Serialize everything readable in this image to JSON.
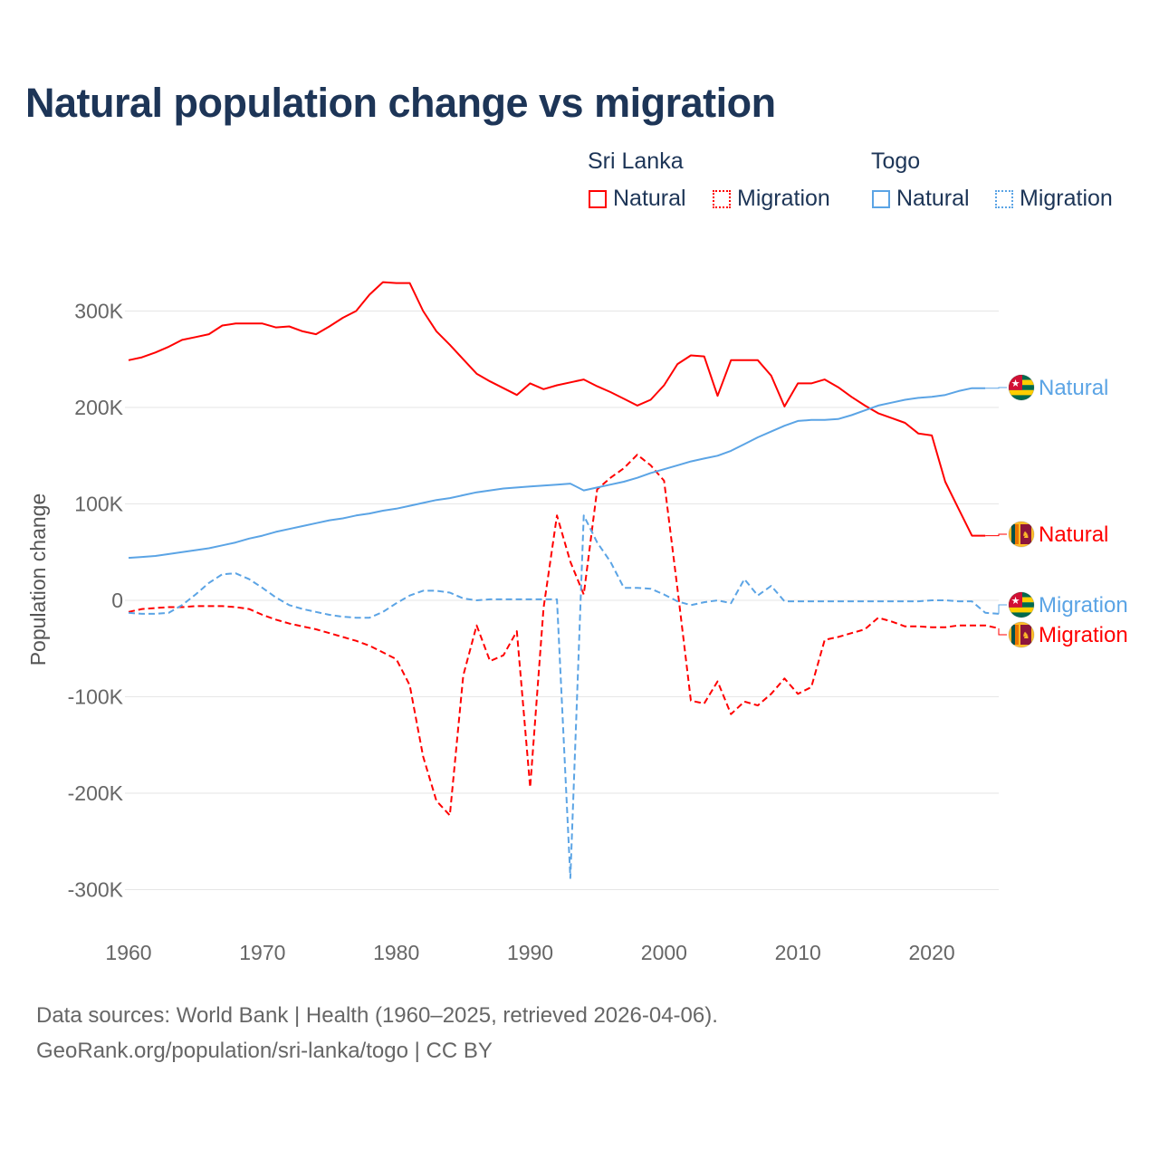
{
  "title": "Natural population change vs migration",
  "legend": {
    "groups": [
      {
        "name": "Sri Lanka",
        "items": [
          "Natural",
          "Migration"
        ],
        "color": "#ff0000"
      },
      {
        "name": "Togo",
        "items": [
          "Natural",
          "Migration"
        ],
        "color": "#5ba4e5"
      }
    ]
  },
  "footer": {
    "line1": "Data sources: World Bank | Health (1960–2025, retrieved 2026-04-06).",
    "line2": "GeoRank.org/population/sri-lanka/togo | CC BY"
  },
  "chart_data": {
    "type": "line",
    "title": "Natural population change vs migration",
    "ylabel": "Population change",
    "xlabel": "",
    "xlim": [
      1960,
      2025
    ],
    "ylim": [
      -300000,
      300000
    ],
    "x_ticks": [
      1960,
      1970,
      1980,
      1990,
      2000,
      2010,
      2020
    ],
    "x_tick_labels": [
      "1960",
      "1970",
      "1980",
      "1990",
      "2000",
      "2010",
      "2020"
    ],
    "y_ticks": [
      300000,
      200000,
      100000,
      0,
      -100000,
      -200000,
      -300000
    ],
    "y_tick_labels": [
      "300K",
      "200K",
      "100K",
      "0",
      "-100K",
      "-200K",
      "-300K"
    ],
    "grid": true,
    "legend_position": "top-right",
    "x_start": 1960,
    "series": [
      {
        "name": "Sri Lanka Natural",
        "country": "Sri Lanka",
        "kind": "Natural",
        "end_label": "Natural",
        "color": "#ff0000",
        "dash": false,
        "values": [
          249,
          252,
          257,
          263,
          270,
          273,
          276,
          285,
          287,
          287,
          287,
          283,
          284,
          279,
          276,
          284,
          293,
          300,
          317,
          330,
          329,
          329,
          300,
          279,
          265,
          250,
          235,
          227,
          220,
          213,
          225,
          219,
          223,
          226,
          229,
          222,
          216,
          209,
          202,
          208,
          223,
          245,
          254,
          253,
          212,
          249,
          249,
          249,
          233,
          201,
          225,
          225,
          229,
          221,
          211,
          202,
          194,
          189,
          184,
          173,
          171,
          123,
          95,
          67,
          67
        ]
      },
      {
        "name": "Sri Lanka Migration",
        "country": "Sri Lanka",
        "kind": "Migration",
        "end_label": "Migration",
        "color": "#ff0000",
        "dash": true,
        "values": [
          -12,
          -9,
          -8,
          -7,
          -7,
          -6,
          -6,
          -6,
          -7,
          -9,
          -15,
          -20,
          -24,
          -27,
          -30,
          -34,
          -38,
          -42,
          -47,
          -54,
          -61,
          -88,
          -162,
          -208,
          -223,
          -78,
          -26,
          -63,
          -57,
          -32,
          -194,
          -8,
          88,
          40,
          6,
          115,
          127,
          137,
          151,
          140,
          124,
          12,
          -104,
          -107,
          -84,
          -118,
          -105,
          -109,
          -97,
          -81,
          -97,
          -90,
          -41,
          -38,
          -34,
          -30,
          -18,
          -22,
          -27,
          -27,
          -28,
          -28,
          -26,
          -26,
          -26,
          -29
        ]
      },
      {
        "name": "Togo Natural",
        "country": "Togo",
        "kind": "Natural",
        "end_label": "Natural",
        "color": "#5ba4e5",
        "dash": false,
        "values": [
          44,
          45,
          46,
          48,
          50,
          52,
          54,
          57,
          60,
          64,
          67,
          71,
          74,
          77,
          80,
          83,
          85,
          88,
          90,
          93,
          95,
          98,
          101,
          104,
          106,
          109,
          112,
          114,
          116,
          117,
          118,
          119,
          120,
          121,
          114,
          117,
          120,
          123,
          127,
          132,
          136,
          140,
          144,
          147,
          150,
          155,
          162,
          169,
          175,
          181,
          186,
          187,
          187,
          188,
          192,
          197,
          202,
          205,
          208,
          210,
          211,
          213,
          217,
          220,
          220
        ]
      },
      {
        "name": "Togo Migration",
        "country": "Togo",
        "kind": "Migration",
        "end_label": "Migration",
        "color": "#5ba4e5",
        "dash": true,
        "values": [
          -13,
          -14,
          -14,
          -13,
          -5,
          6,
          18,
          27,
          28,
          22,
          13,
          3,
          -5,
          -9,
          -12,
          -15,
          -17,
          -18,
          -18,
          -12,
          -3,
          5,
          10,
          10,
          8,
          2,
          0,
          1,
          1,
          1,
          1,
          1,
          1,
          -288,
          88,
          60,
          40,
          13,
          13,
          12,
          6,
          -1,
          -5,
          -2,
          0,
          -3,
          22,
          5,
          15,
          -1,
          -1,
          -1,
          -1,
          -1,
          -1,
          -1,
          -1,
          -1,
          -1,
          -1,
          0,
          0,
          -1,
          -1,
          -13,
          -14
        ]
      }
    ],
    "value_unit": "thousands"
  }
}
